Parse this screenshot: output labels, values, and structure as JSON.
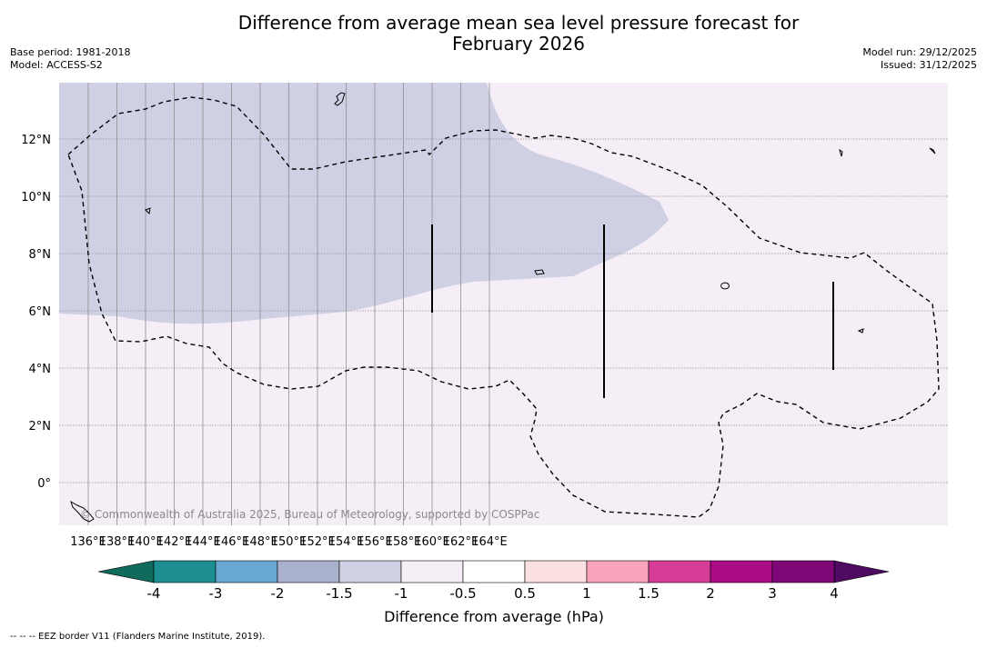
{
  "title": {
    "line1": "Difference from average mean sea level pressure forecast for",
    "line2": "February 2026"
  },
  "meta": {
    "base_period": "Base period: 1981-2018",
    "model": "Model: ACCESS-S2",
    "model_run": "Model run: 29/12/2025",
    "issued": "Issued: 31/12/2025"
  },
  "map": {
    "lon_labels": [
      "136°E",
      "138°E",
      "140°E",
      "142°E",
      "144°E",
      "146°E",
      "148°E",
      "150°E",
      "152°E",
      "154°E",
      "156°E",
      "158°E",
      "160°E",
      "162°E",
      "164°E"
    ],
    "lat_labels": [
      "12°N",
      "10°N",
      "8°N",
      "6°N",
      "4°N",
      "2°N",
      "0°"
    ],
    "copyright": "© Commonwealth of Australia 2025, Bureau of Meteorology, supported by COSPPac",
    "colors": {
      "ocean_main": "#f5eef6",
      "anomaly_neg": "#cfd0e4",
      "eez": "#000000"
    }
  },
  "colorbar": {
    "title": "Difference from average (hPa)",
    "tick_labels": [
      "-4",
      "-3",
      "-2",
      "-1.5",
      "-1",
      "-0.5",
      "0.5",
      "1",
      "1.5",
      "2",
      "3",
      "4"
    ],
    "colors": [
      "#1d8f93",
      "#67a7d0",
      "#a9b1cc",
      "#cfd0e4",
      "#f5eef6",
      "#ffffff",
      "#fde0e0",
      "#f8a3b9",
      "#d63d99",
      "#ab0a85",
      "#7e0877"
    ],
    "low_extend_color": "#106b5c",
    "high_extend_color": "#4e0a60"
  },
  "footnote": "-- -- -- EEZ border V11 (Flanders Marine Institute, 2019)."
}
